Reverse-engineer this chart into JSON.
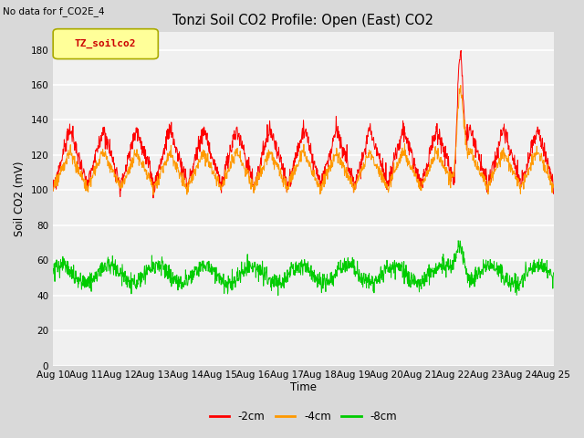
{
  "title": "Tonzi Soil CO2 Profile: Open (East) CO2",
  "subtitle": "No data for f_CO2E_4",
  "ylabel": "Soil CO2 (mV)",
  "xlabel": "Time",
  "legend_label": "TZ_soilco2",
  "series_labels": [
    "-2cm",
    "-4cm",
    "-8cm"
  ],
  "series_colors": [
    "#ff0000",
    "#ff9900",
    "#00cc00"
  ],
  "ylim": [
    0,
    190
  ],
  "yticks": [
    0,
    20,
    40,
    60,
    80,
    100,
    120,
    140,
    160,
    180
  ],
  "xtick_labels": [
    "Aug 10",
    "Aug 11",
    "Aug 12",
    "Aug 13",
    "Aug 14",
    "Aug 15",
    "Aug 16",
    "Aug 17",
    "Aug 18",
    "Aug 19",
    "Aug 20",
    "Aug 21",
    "Aug 22",
    "Aug 23",
    "Aug 24",
    "Aug 25"
  ],
  "bg_color": "#d9d9d9",
  "plot_bg_color": "#f0f0f0",
  "legend_box_color": "#ffff99",
  "legend_box_edge": "#aaaa00"
}
